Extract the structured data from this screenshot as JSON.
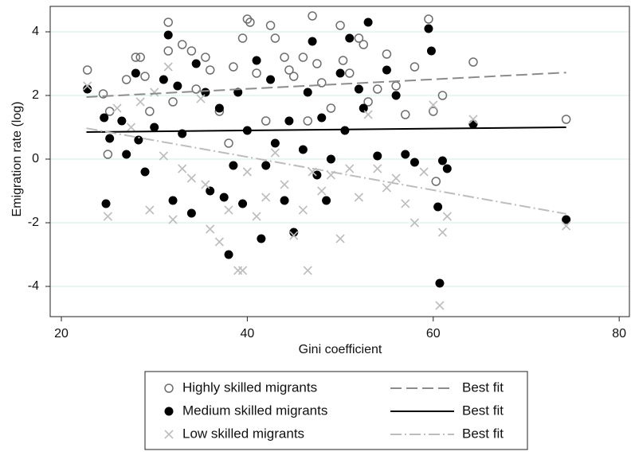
{
  "chart_data": {
    "type": "scatter",
    "xlabel": "Gini coefficient",
    "ylabel": "Emigration rate (log)",
    "xlim": [
      18.8,
      81.1
    ],
    "ylim": [
      -4.95,
      4.8
    ],
    "xticks": [
      20,
      40,
      60,
      80
    ],
    "yticks": [
      -4,
      -2,
      0,
      2,
      4
    ],
    "grid": true,
    "legend": "bottom",
    "series": [
      {
        "name": "Highly skilled migrants",
        "marker": "hollow-circle",
        "color": "#6e6e6e",
        "x": [
          22.8,
          24.5,
          25,
          25.2,
          27,
          28,
          28.5,
          29,
          29.5,
          31.5,
          31.5,
          32,
          33,
          34,
          34.5,
          35.5,
          36,
          37,
          38,
          38.5,
          39.5,
          40,
          40.3,
          41,
          42,
          42.5,
          43,
          44,
          44.5,
          45,
          46,
          46.5,
          47,
          47.5,
          48,
          49,
          50,
          50.3,
          51,
          52,
          52.5,
          53,
          54,
          55,
          56,
          57,
          58,
          59.5,
          60,
          60.3,
          61,
          64.3,
          74.3
        ],
        "values": [
          2.8,
          2.05,
          0.15,
          1.5,
          2.5,
          3.2,
          3.2,
          2.6,
          1.5,
          4.3,
          3.4,
          1.8,
          3.6,
          3.4,
          2.2,
          3.2,
          2.8,
          1.5,
          0.5,
          2.9,
          3.8,
          4.4,
          4.3,
          2.7,
          1.2,
          4.2,
          3.8,
          3.2,
          2.8,
          2.6,
          3.2,
          1.2,
          4.5,
          3.0,
          2.4,
          1.6,
          4.2,
          3.1,
          2.7,
          3.8,
          3.6,
          1.8,
          2.2,
          3.3,
          2.3,
          1.4,
          2.9,
          4.4,
          1.5,
          -0.7,
          2.0,
          3.05,
          1.25
        ]
      },
      {
        "name": "Medium skilled migrants",
        "marker": "filled-circle",
        "color": "#000000",
        "x": [
          22.8,
          24.6,
          24.8,
          25.2,
          26.5,
          27,
          28,
          28.3,
          29,
          30,
          31,
          31.5,
          32,
          32.5,
          33,
          34,
          34.5,
          35.5,
          36,
          37,
          37.5,
          38,
          38.5,
          39,
          39.5,
          40,
          41,
          41.5,
          42,
          42.5,
          43,
          44,
          44.5,
          45,
          46,
          46.5,
          47,
          47.5,
          48,
          48.5,
          49,
          50,
          50.5,
          51,
          52,
          52.5,
          53,
          54,
          55,
          56,
          57,
          58,
          59.5,
          59.8,
          60.5,
          60.7,
          61,
          61.5,
          64.3,
          74.3
        ],
        "values": [
          2.2,
          1.3,
          -1.4,
          0.65,
          1.2,
          0.15,
          2.7,
          0.6,
          -0.4,
          1.0,
          2.5,
          3.9,
          -1.3,
          2.3,
          0.8,
          -1.7,
          3.0,
          2.1,
          -1.0,
          1.6,
          -1.2,
          -3.0,
          -0.2,
          2.1,
          -1.4,
          0.9,
          3.1,
          -2.5,
          -0.2,
          2.5,
          0.5,
          -1.3,
          1.2,
          -2.3,
          0.3,
          2.1,
          3.7,
          -0.5,
          1.3,
          -1.3,
          0.0,
          2.7,
          0.9,
          3.8,
          2.2,
          1.6,
          4.3,
          0.1,
          2.8,
          2.0,
          0.15,
          -0.1,
          4.1,
          3.4,
          -1.5,
          -3.9,
          -0.05,
          -0.3,
          1.1,
          -1.9
        ]
      },
      {
        "name": "Low skilled migrants",
        "marker": "cross",
        "color": "#bdbdbd",
        "x": [
          22.8,
          25,
          26,
          27.5,
          28.5,
          29.5,
          30,
          31,
          31.5,
          32,
          33,
          34,
          35,
          35.5,
          36,
          37,
          38,
          39,
          39.5,
          40,
          41,
          42,
          43,
          44,
          45,
          46,
          46.5,
          47,
          48,
          49,
          50,
          51,
          52,
          53,
          54,
          55,
          56,
          57,
          58,
          59,
          60,
          60.7,
          61,
          61.5,
          64.3,
          74.3
        ],
        "values": [
          2.3,
          -1.8,
          1.6,
          1.0,
          1.8,
          -1.6,
          2.1,
          0.1,
          2.9,
          -1.9,
          -0.3,
          -0.6,
          1.9,
          -0.8,
          -2.2,
          -2.6,
          -1.6,
          -3.5,
          -3.5,
          -0.4,
          -1.8,
          -1.2,
          0.2,
          -0.8,
          -2.4,
          -1.6,
          -3.5,
          -0.4,
          -1.0,
          -0.5,
          -2.5,
          -0.3,
          -1.2,
          1.4,
          -0.3,
          -0.9,
          -0.6,
          -1.4,
          -2.0,
          -0.4,
          1.7,
          -4.6,
          -2.3,
          -1.8,
          1.25,
          -2.1
        ]
      }
    ],
    "fit_lines": [
      {
        "name": "Best fit",
        "color": "#8c8c8c",
        "dash": "14 6",
        "x": [
          22.7,
          74.3
        ],
        "values": [
          1.95,
          2.72
        ]
      },
      {
        "name": "Best fit",
        "color": "#000000",
        "dash": "none",
        "x": [
          22.7,
          74.3
        ],
        "values": [
          0.85,
          1.0
        ]
      },
      {
        "name": "Best fit",
        "color": "#bdbdbd",
        "dash": "14 4 2 4",
        "x": [
          22.7,
          74.3
        ],
        "values": [
          0.97,
          -1.72
        ]
      }
    ]
  }
}
